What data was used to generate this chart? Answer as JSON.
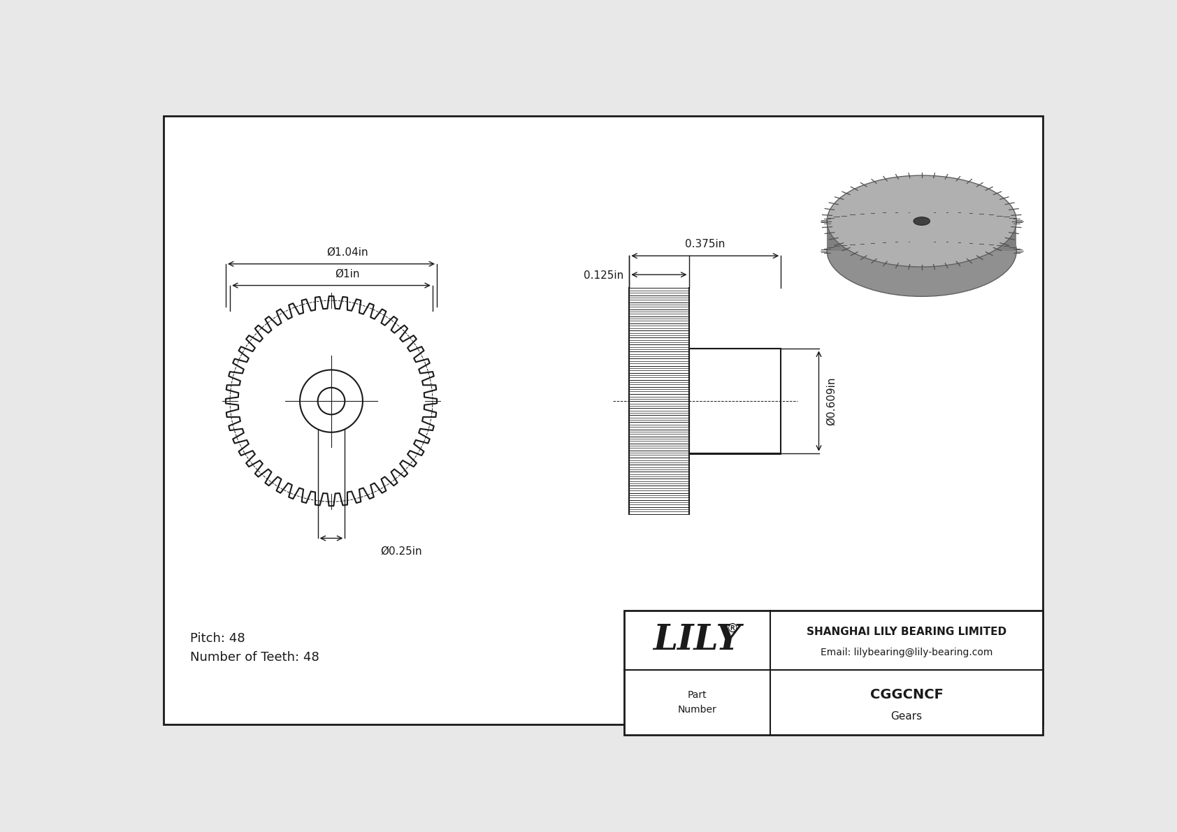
{
  "bg_color": "#e8e8e8",
  "drawing_bg": "#ffffff",
  "line_color": "#1a1a1a",
  "part_number": "CGGCNCF",
  "part_type": "Gears",
  "company": "SHANGHAI LILY BEARING LIMITED",
  "email": "Email: lilybearing@lily-bearing.com",
  "pitch_text": "Pitch: 48",
  "num_teeth_text": "Number of Teeth: 48",
  "dim_outer": "Ø1.04in",
  "dim_pitch": "Ø1in",
  "dim_hub": "Ø0.25in",
  "dim_bore": "Ø0.609in",
  "dim_face": "0.375in",
  "dim_hub_width": "0.125in",
  "num_gear_teeth": 48
}
